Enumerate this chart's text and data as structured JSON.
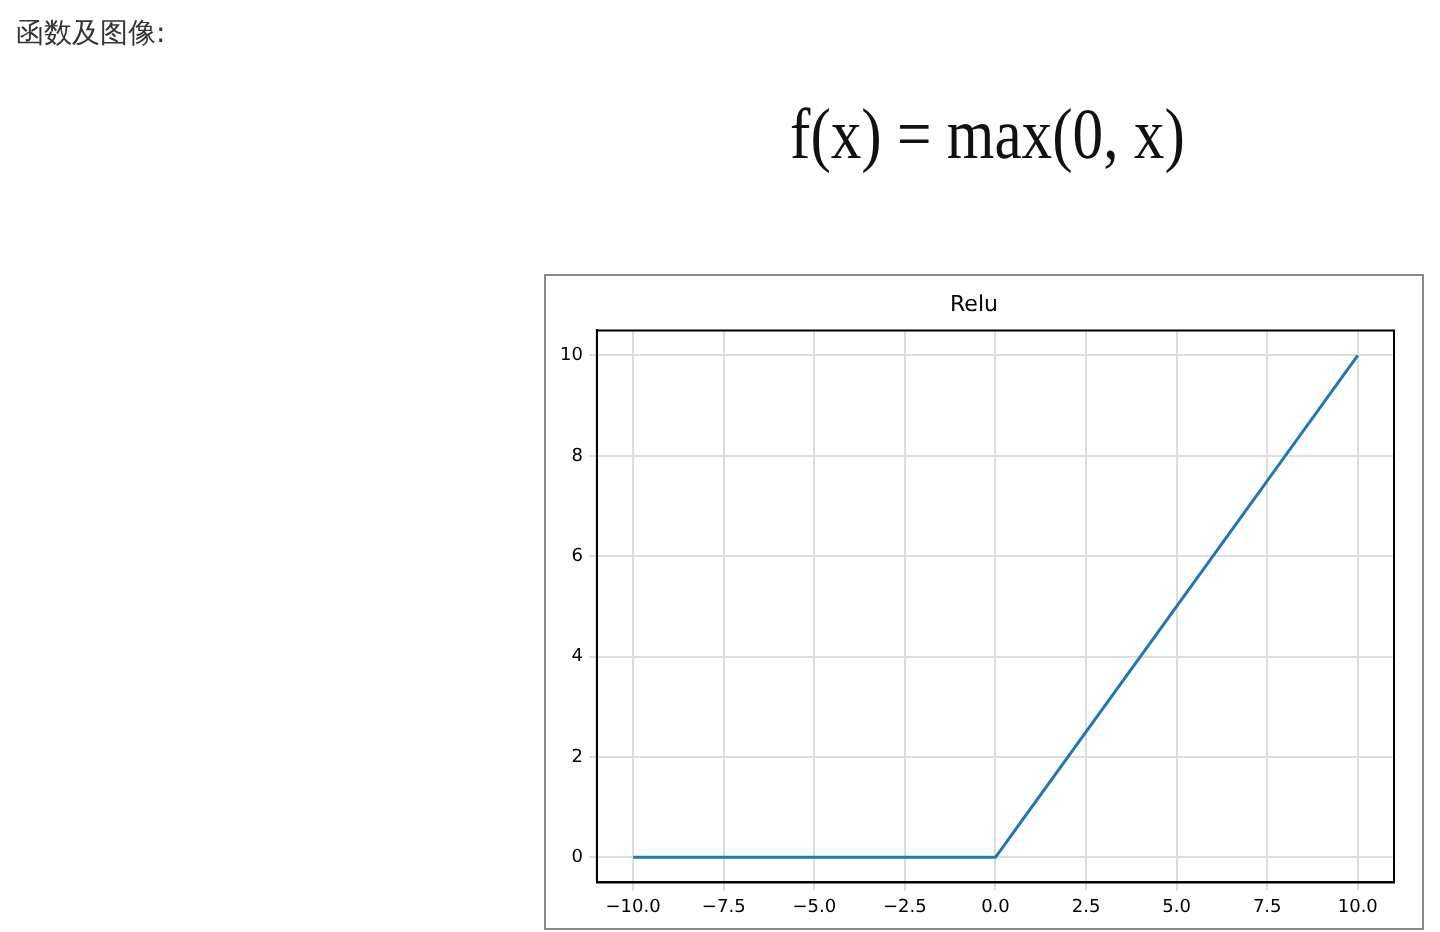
{
  "chart_data": {
    "type": "line",
    "title": "Relu",
    "annotations": [
      "函数及图像:",
      "f(x) = max(0, x)"
    ],
    "x": [
      -10,
      0,
      10
    ],
    "series": [
      {
        "color": "#1f77b4",
        "values": [
          0,
          0,
          10
        ]
      }
    ],
    "xlim": [
      -11,
      11
    ],
    "xticks": [
      {
        "value": -10,
        "label": "−10.0"
      },
      {
        "value": -7.5,
        "label": "−7.5"
      },
      {
        "value": -5,
        "label": "−5.0"
      },
      {
        "value": -2.5,
        "label": "−2.5"
      },
      {
        "value": 0,
        "label": "0.0"
      },
      {
        "value": 2.5,
        "label": "2.5"
      },
      {
        "value": 5,
        "label": "5.0"
      },
      {
        "value": 7.5,
        "label": "7.5"
      },
      {
        "value": 10,
        "label": "10.0"
      }
    ],
    "ylim": [
      -0.5,
      10.5
    ],
    "yticks": [
      0,
      2,
      4,
      6,
      8,
      10
    ],
    "grid": true,
    "legend": false
  }
}
